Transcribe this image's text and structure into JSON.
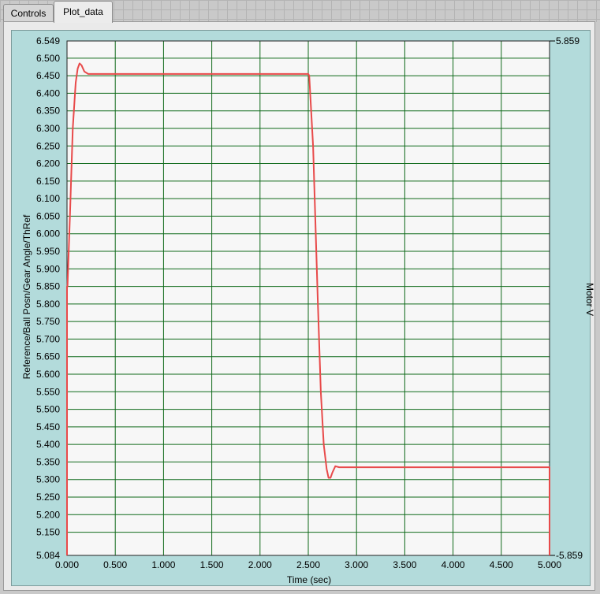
{
  "tabs": [
    {
      "label": "Controls",
      "active": false
    },
    {
      "label": "Plot_data",
      "active": true
    }
  ],
  "colors": {
    "plot_background": "#f7f7f7",
    "grid": "#0f6a1a",
    "trace": "#e84a4a",
    "frame": "#b3dbdb"
  },
  "chart_data": {
    "type": "line",
    "xlabel": "Time (sec)",
    "ylabel": "Reference/Ball Posn/Gear Angle/ThRef",
    "y2label": "Motor V",
    "xlim": [
      0,
      5
    ],
    "ylim": [
      5.084,
      6.549
    ],
    "y2_ticks": [
      "5.859",
      "-5.859"
    ],
    "grid": true,
    "x_ticks": [
      0,
      0.5,
      1,
      1.5,
      2,
      2.5,
      3,
      3.5,
      4,
      4.5,
      5
    ],
    "x_tick_labels": [
      "0.000",
      "0.500",
      "1.000",
      "1.500",
      "2.000",
      "2.500",
      "3.000",
      "3.500",
      "4.000",
      "4.500",
      "5.000"
    ],
    "y_ticks": [
      6.549,
      6.5,
      6.45,
      6.4,
      6.35,
      6.3,
      6.25,
      6.2,
      6.15,
      6.1,
      6.05,
      6.0,
      5.95,
      5.9,
      5.85,
      5.8,
      5.75,
      5.7,
      5.65,
      5.6,
      5.55,
      5.5,
      5.45,
      5.4,
      5.35,
      5.3,
      5.25,
      5.2,
      5.15,
      5.084
    ],
    "y_tick_labels": [
      "6.549",
      "6.500",
      "6.450",
      "6.400",
      "6.350",
      "6.300",
      "6.250",
      "6.200",
      "6.150",
      "6.100",
      "6.050",
      "6.000",
      "5.950",
      "5.900",
      "5.850",
      "5.800",
      "5.750",
      "5.700",
      "5.650",
      "5.600",
      "5.550",
      "5.500",
      "5.450",
      "5.400",
      "5.350",
      "5.300",
      "5.250",
      "5.200",
      "5.150",
      "5.084"
    ],
    "series": [
      {
        "x": [
          0.0,
          0.0,
          0.005,
          0.03,
          0.06,
          0.09,
          0.11,
          0.13,
          0.15,
          0.18,
          0.22,
          0.3,
          0.5,
          1.0,
          1.5,
          2.0,
          2.5,
          2.51,
          2.55,
          2.6,
          2.63,
          2.66,
          2.69,
          2.71,
          2.73,
          2.75,
          2.78,
          2.82,
          2.9,
          3.5,
          4.0,
          4.5,
          5.0,
          5.0
        ],
        "y": [
          5.084,
          5.85,
          5.85,
          6.05,
          6.3,
          6.43,
          6.47,
          6.485,
          6.48,
          6.462,
          6.455,
          6.455,
          6.455,
          6.455,
          6.455,
          6.455,
          6.455,
          6.45,
          6.25,
          5.8,
          5.55,
          5.4,
          5.33,
          5.305,
          5.305,
          5.32,
          5.338,
          5.335,
          5.335,
          5.335,
          5.335,
          5.335,
          5.335,
          5.084
        ]
      }
    ]
  }
}
